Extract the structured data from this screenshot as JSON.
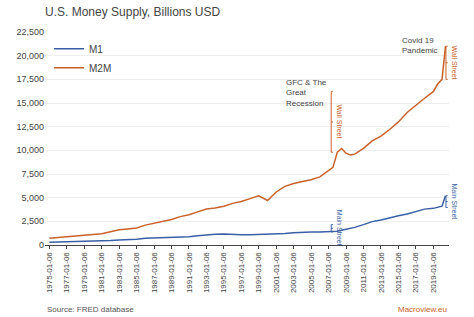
{
  "chart_data": {
    "type": "line",
    "title": "U.S. Money Supply, Billions USD",
    "series": [
      {
        "name": "M1",
        "color": "#3a5fa5",
        "x": [
          1975,
          1976,
          1977,
          1978,
          1979,
          1980,
          1981,
          1982,
          1983,
          1984,
          1985,
          1986,
          1987,
          1988,
          1989,
          1990,
          1991,
          1992,
          1993,
          1994,
          1995,
          1996,
          1997,
          1998,
          1999,
          2000,
          2001,
          2002,
          2003,
          2004,
          2005,
          2006,
          2007,
          2008,
          2009,
          2010,
          2011,
          2012,
          2013,
          2014,
          2015,
          2016,
          2017,
          2018,
          2019,
          2019.5,
          2020.0,
          2020.4
        ],
        "values": [
          280,
          300,
          330,
          360,
          380,
          408,
          430,
          470,
          520,
          550,
          620,
          720,
          750,
          790,
          800,
          820,
          870,
          970,
          1070,
          1130,
          1150,
          1100,
          1070,
          1090,
          1120,
          1100,
          1180,
          1220,
          1290,
          1350,
          1370,
          1380,
          1380,
          1450,
          1670,
          1860,
          2150,
          2470,
          2640,
          2890,
          3080,
          3280,
          3570,
          3790,
          3870,
          3960,
          4100,
          5200
        ]
      },
      {
        "name": "M2M",
        "color": "#c8612a",
        "x": [
          1975,
          1976,
          1977,
          1978,
          1979,
          1980,
          1981,
          1982,
          1983,
          1984,
          1985,
          1986,
          1987,
          1988,
          1989,
          1990,
          1991,
          1992,
          1993,
          1994,
          1995,
          1996,
          1997,
          1998,
          1999,
          2000,
          2001,
          2002,
          2003,
          2004,
          2005,
          2006,
          2007,
          2007.5,
          2008.0,
          2008.5,
          2009,
          2009.5,
          2010,
          2011,
          2012,
          2013,
          2014,
          2015,
          2016,
          2017,
          2018,
          2019,
          2019.5,
          2020.0,
          2020.4
        ],
        "values": [
          700,
          780,
          870,
          960,
          1050,
          1100,
          1200,
          1400,
          1600,
          1700,
          1800,
          2100,
          2300,
          2500,
          2700,
          3000,
          3200,
          3500,
          3800,
          3900,
          4100,
          4400,
          4600,
          4900,
          5200,
          4700,
          5600,
          6200,
          6500,
          6700,
          6900,
          7200,
          7900,
          8200,
          9800,
          10200,
          9700,
          9500,
          9600,
          10200,
          11000,
          11500,
          12200,
          13000,
          14000,
          14800,
          15500,
          16200,
          17000,
          17500,
          21000
        ]
      }
    ],
    "xlim": [
      1974.5,
      2020.8
    ],
    "xticks": [
      {
        "value": 1975,
        "label": "1975-01-06"
      },
      {
        "value": 1977,
        "label": "1977-01-06"
      },
      {
        "value": 1979,
        "label": "1979-01-06"
      },
      {
        "value": 1981,
        "label": "1981-01-06"
      },
      {
        "value": 1983,
        "label": "1983-01-06"
      },
      {
        "value": 1985,
        "label": "1985-01-06"
      },
      {
        "value": 1987,
        "label": "1987-01-06"
      },
      {
        "value": 1989,
        "label": "1989-01-06"
      },
      {
        "value": 1991,
        "label": "1991-01-06"
      },
      {
        "value": 1993,
        "label": "1993-01-06"
      },
      {
        "value": 1995,
        "label": "1995-01-06"
      },
      {
        "value": 1997,
        "label": "1997-01-06"
      },
      {
        "value": 1999,
        "label": "1999-01-06"
      },
      {
        "value": 2001,
        "label": "2001-01-06"
      },
      {
        "value": 2003,
        "label": "2003-01-06"
      },
      {
        "value": 2005,
        "label": "2005-01-06"
      },
      {
        "value": 2007,
        "label": "2007-01-06"
      },
      {
        "value": 2009,
        "label": "2009-01-06"
      },
      {
        "value": 2011,
        "label": "2011-01-06"
      },
      {
        "value": 2013,
        "label": "2013-01-06"
      },
      {
        "value": 2015,
        "label": "2015-01-06"
      },
      {
        "value": 2017,
        "label": "2017-01-06"
      },
      {
        "value": 2019,
        "label": "2019-01-06"
      }
    ],
    "ylim": [
      0,
      22500
    ],
    "yticks": [
      0,
      {
        "value": 2500,
        "label": "2,500"
      },
      {
        "value": 5000,
        "label": "5,000"
      },
      {
        "value": 7500,
        "label": "7,500"
      },
      {
        "value": 10000,
        "label": "10,000"
      },
      {
        "value": 12500,
        "label": "12,500"
      },
      {
        "value": 15000,
        "label": "15,000"
      },
      {
        "value": 17500,
        "label": "17,500"
      },
      {
        "value": 20000,
        "label": "20,000"
      },
      {
        "value": 22500,
        "label": "22,500"
      }
    ],
    "grid": true,
    "legend": "upper left",
    "annotations": [
      {
        "text": "Wall Street",
        "x": 2007.3,
        "bracket": [
          9800,
          16200
        ],
        "color": "#c8612a"
      },
      {
        "text": "GFC & The\nGreat\nRecession",
        "x": 2006.5,
        "y": 17800
      },
      {
        "text": "Main Street",
        "x": 2007.3,
        "bracket": [
          1380,
          2150
        ],
        "color": "#3a5fa5"
      },
      {
        "text": "Wall Street",
        "x": 2020.45,
        "bracket": [
          17500,
          21000
        ],
        "color": "#c8612a"
      },
      {
        "text": "Covid 19\nPandemic",
        "x": 2019.2,
        "y": 22300
      },
      {
        "text": "Main Street",
        "x": 2020.45,
        "bracket": [
          3960,
          5200
        ],
        "color": "#3a5fa5"
      }
    ],
    "source": "Source: FRED database",
    "credit": "Macroview.eu"
  }
}
